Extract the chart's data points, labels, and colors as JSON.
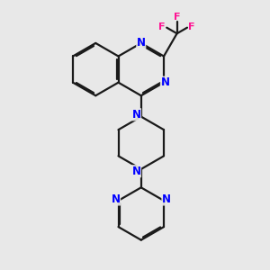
{
  "bg_color": "#e8e8e8",
  "bond_color": "#1a1a1a",
  "n_color": "#0000ff",
  "f_color": "#ff1493",
  "lw": 1.6,
  "dbo": 0.055,
  "xlim": [
    0,
    10
  ],
  "ylim": [
    0,
    10
  ]
}
